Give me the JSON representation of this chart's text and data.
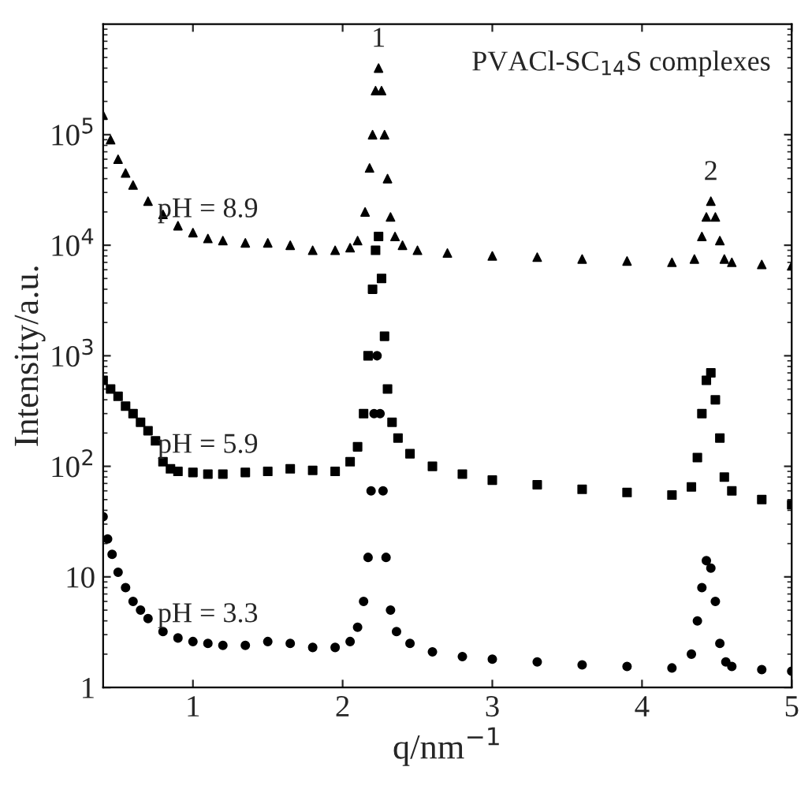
{
  "chart_data": {
    "type": "scatter",
    "xlabel": "q/nm$^{−1}$",
    "ylabel": "Intensity/a.u.",
    "log": "y",
    "xlim": [
      0.4,
      5
    ],
    "xticks": [
      1,
      2,
      3,
      4,
      5
    ],
    "ylim": [
      1,
      1000000
    ],
    "yticks": [
      1,
      10,
      {
        "value": 100,
        "label": "10$^{2}$"
      },
      {
        "value": 1000,
        "label": "10$^{3}$"
      },
      {
        "value": 10000,
        "label": "10$^{4}$"
      },
      {
        "value": 100000,
        "label": "10$^{5}$"
      }
    ],
    "grid": false,
    "legend": false,
    "series": [
      {
        "color": "#000000",
        "marker": "triangle",
        "x": [
          0.4,
          0.45,
          0.5,
          0.55,
          0.6,
          0.7,
          0.8,
          0.9,
          1.0,
          1.1,
          1.2,
          1.35,
          1.5,
          1.65,
          1.8,
          1.95,
          2.05,
          2.1,
          2.15,
          2.18,
          2.2,
          2.22,
          2.24,
          2.26,
          2.28,
          2.3,
          2.32,
          2.35,
          2.4,
          2.5,
          2.7,
          3.0,
          3.3,
          3.6,
          3.9,
          4.2,
          4.35,
          4.4,
          4.43,
          4.46,
          4.49,
          4.52,
          4.55,
          4.6,
          4.8,
          5.0
        ],
        "values": [
          150000,
          90000,
          60000,
          45000,
          35000,
          25000,
          19000,
          15000,
          13000,
          11500,
          11000,
          10500,
          10500,
          10000,
          9000,
          9000,
          9500,
          11000,
          20000,
          50000,
          100000,
          250000,
          400000,
          250000,
          100000,
          40000,
          18000,
          12000,
          10000,
          9000,
          8500,
          8000,
          7800,
          7500,
          7200,
          7000,
          7500,
          12000,
          18000,
          25000,
          18000,
          11000,
          7500,
          7000,
          6700,
          6500
        ]
      },
      {
        "color": "#000000",
        "marker": "square",
        "x": [
          0.4,
          0.45,
          0.5,
          0.55,
          0.6,
          0.65,
          0.7,
          0.75,
          0.8,
          0.85,
          0.9,
          1.0,
          1.1,
          1.2,
          1.35,
          1.5,
          1.65,
          1.8,
          1.95,
          2.05,
          2.1,
          2.14,
          2.17,
          2.2,
          2.22,
          2.24,
          2.26,
          2.28,
          2.3,
          2.33,
          2.37,
          2.45,
          2.6,
          2.8,
          3.0,
          3.3,
          3.6,
          3.9,
          4.2,
          4.33,
          4.37,
          4.4,
          4.43,
          4.46,
          4.49,
          4.52,
          4.55,
          4.6,
          4.8,
          5.0
        ],
        "values": [
          600,
          500,
          430,
          350,
          300,
          250,
          210,
          170,
          110,
          95,
          90,
          88,
          85,
          85,
          88,
          90,
          95,
          92,
          90,
          110,
          150,
          300,
          1000,
          4000,
          9000,
          12000,
          5000,
          1500,
          500,
          250,
          180,
          130,
          100,
          85,
          75,
          68,
          62,
          58,
          55,
          65,
          120,
          300,
          600,
          700,
          400,
          180,
          80,
          60,
          50,
          45
        ]
      },
      {
        "color": "#000000",
        "marker": "circle",
        "x": [
          0.4,
          0.43,
          0.46,
          0.5,
          0.55,
          0.6,
          0.65,
          0.7,
          0.8,
          0.9,
          1.0,
          1.1,
          1.2,
          1.35,
          1.5,
          1.65,
          1.8,
          1.95,
          2.05,
          2.1,
          2.14,
          2.17,
          2.19,
          2.21,
          2.23,
          2.25,
          2.27,
          2.29,
          2.32,
          2.36,
          2.45,
          2.6,
          2.8,
          3.0,
          3.3,
          3.6,
          3.9,
          4.2,
          4.33,
          4.37,
          4.4,
          4.43,
          4.46,
          4.49,
          4.52,
          4.56,
          4.6,
          4.8,
          5.0
        ],
        "values": [
          35,
          22,
          16,
          11,
          8,
          6,
          5,
          4.2,
          3.2,
          2.8,
          2.6,
          2.5,
          2.4,
          2.4,
          2.6,
          2.5,
          2.3,
          2.3,
          2.6,
          3.5,
          6,
          15,
          60,
          300,
          1000,
          300,
          60,
          15,
          5,
          3.2,
          2.5,
          2.1,
          1.9,
          1.8,
          1.7,
          1.6,
          1.55,
          1.5,
          2,
          4,
          8,
          14,
          12,
          6,
          2.5,
          1.7,
          1.55,
          1.45,
          1.4
        ]
      }
    ],
    "annotations": [
      {
        "text": "1",
        "x": 2.24,
        "y": 400000
      },
      {
        "text": "2",
        "x": 4.46,
        "y": 25000
      },
      {
        "text": "pH = 8.9",
        "x": 1.1,
        "y": 11500
      },
      {
        "text": "pH = 5.9",
        "x": 1.1,
        "y": 85
      },
      {
        "text": "pH = 3.3",
        "x": 1.1,
        "y": 2.5
      },
      "PVACl-SC$_{14}$S complexes"
    ]
  }
}
